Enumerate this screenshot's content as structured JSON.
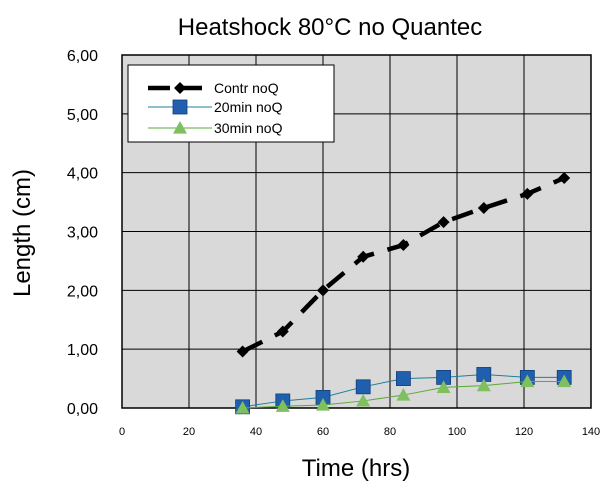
{
  "chart_data": {
    "type": "line",
    "title": "Heatshock 80°C  no Quantec",
    "xlabel": "Time (hrs)",
    "ylabel": "Length (cm)",
    "xlim": [
      0,
      140
    ],
    "ylim": [
      0,
      6
    ],
    "x_ticks": [
      0,
      20,
      40,
      60,
      80,
      100,
      120,
      140
    ],
    "y_ticks": [
      0,
      1,
      2,
      3,
      4,
      5,
      6
    ],
    "y_tick_labels": [
      "0,00",
      "1,00",
      "2,00",
      "3,00",
      "4,00",
      "5,00",
      "6,00"
    ],
    "grid": true,
    "legend_position": "top-left",
    "colors": {
      "plot_background": "#d9d9d9",
      "contr": "#000000",
      "min20_marker": "#1f5fae",
      "min20_line": "#1f7f9a",
      "min30_marker": "#7fbf5f",
      "min30_line": "#5aa83a"
    },
    "series": [
      {
        "name": "Contr noQ",
        "marker": "diamond",
        "line_style": "dashed",
        "x": [
          36,
          48,
          60,
          72,
          84,
          96,
          108,
          121,
          132
        ],
        "y": [
          0.96,
          1.3,
          2.0,
          2.57,
          2.77,
          3.16,
          3.4,
          3.64,
          3.91
        ]
      },
      {
        "name": "20min noQ",
        "marker": "square",
        "line_style": "solid",
        "x": [
          36,
          48,
          60,
          72,
          84,
          96,
          108,
          121,
          132
        ],
        "y": [
          0.02,
          0.12,
          0.18,
          0.36,
          0.5,
          0.52,
          0.57,
          0.52,
          0.52
        ]
      },
      {
        "name": "30min noQ",
        "marker": "triangle",
        "line_style": "solid",
        "x": [
          36,
          48,
          60,
          72,
          84,
          96,
          108,
          121,
          132
        ],
        "y": [
          0.0,
          0.03,
          0.05,
          0.12,
          0.22,
          0.35,
          0.38,
          0.45,
          0.45
        ]
      }
    ]
  }
}
